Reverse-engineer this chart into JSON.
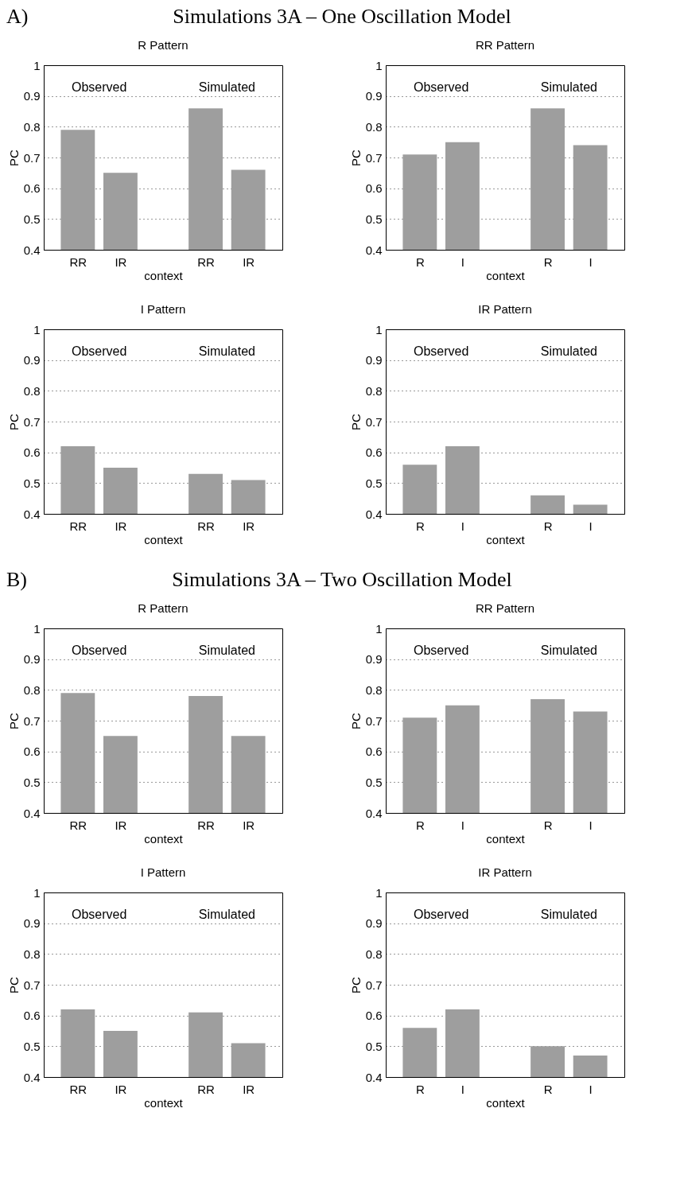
{
  "chart_data": [
    {
      "type": "bar",
      "title": "R  Pattern",
      "xlabel": "context",
      "ylabel": "PC",
      "categories": [
        "RR",
        "IR",
        null,
        "RR",
        "IR"
      ],
      "values": [
        0.79,
        0.65,
        null,
        0.86,
        0.66
      ],
      "color": "#9e9e9e",
      "ylim": [
        0.4,
        1
      ],
      "yticks": [
        0.4,
        0.5,
        0.6,
        0.7,
        0.8,
        0.9,
        1
      ],
      "grid": "y",
      "annotations": [
        "A)",
        "Simulations 3A – One Oscillation Model",
        "Observed",
        "Simulated"
      ]
    },
    {
      "type": "bar",
      "title": "RR Pattern",
      "xlabel": "context",
      "ylabel": "PC",
      "categories": [
        "R",
        "I",
        null,
        "R",
        "I"
      ],
      "values": [
        0.71,
        0.75,
        null,
        0.86,
        0.74
      ],
      "color": "#9e9e9e",
      "ylim": [
        0.4,
        1
      ],
      "yticks": [
        0.4,
        0.5,
        0.6,
        0.7,
        0.8,
        0.9,
        1
      ],
      "grid": "y",
      "annotations": [
        "Observed",
        "Simulated"
      ]
    },
    {
      "type": "bar",
      "title": "I  Pattern",
      "xlabel": "context",
      "ylabel": "PC",
      "categories": [
        "RR",
        "IR",
        null,
        "RR",
        "IR"
      ],
      "values": [
        0.62,
        0.55,
        null,
        0.53,
        0.51
      ],
      "color": "#9e9e9e",
      "ylim": [
        0.4,
        1
      ],
      "yticks": [
        0.4,
        0.5,
        0.6,
        0.7,
        0.8,
        0.9,
        1
      ],
      "grid": "y",
      "annotations": [
        "Observed",
        "Simulated"
      ]
    },
    {
      "type": "bar",
      "title": "IR Pattern",
      "xlabel": "context",
      "ylabel": "PC",
      "categories": [
        "R",
        "I",
        null,
        "R",
        "I"
      ],
      "values": [
        0.56,
        0.62,
        null,
        0.46,
        0.43
      ],
      "color": "#9e9e9e",
      "ylim": [
        0.4,
        1
      ],
      "yticks": [
        0.4,
        0.5,
        0.6,
        0.7,
        0.8,
        0.9,
        1
      ],
      "grid": "y",
      "annotations": [
        "Observed",
        "Simulated"
      ]
    },
    {
      "type": "bar",
      "title": "R  Pattern",
      "xlabel": "context",
      "ylabel": "PC",
      "categories": [
        "RR",
        "IR",
        null,
        "RR",
        "IR"
      ],
      "values": [
        0.79,
        0.65,
        null,
        0.78,
        0.65
      ],
      "color": "#9e9e9e",
      "ylim": [
        0.4,
        1
      ],
      "yticks": [
        0.4,
        0.5,
        0.6,
        0.7,
        0.8,
        0.9,
        1
      ],
      "grid": "y",
      "annotations": [
        "B)",
        "Simulations 3A – Two Oscillation Model",
        "Observed",
        "Simulated"
      ]
    },
    {
      "type": "bar",
      "title": "RR Pattern",
      "xlabel": "context",
      "ylabel": "PC",
      "categories": [
        "R",
        "I",
        null,
        "R",
        "I"
      ],
      "values": [
        0.71,
        0.75,
        null,
        0.77,
        0.73
      ],
      "color": "#9e9e9e",
      "ylim": [
        0.4,
        1
      ],
      "yticks": [
        0.4,
        0.5,
        0.6,
        0.7,
        0.8,
        0.9,
        1
      ],
      "grid": "y",
      "annotations": [
        "Observed",
        "Simulated"
      ]
    },
    {
      "type": "bar",
      "title": "I  Pattern",
      "xlabel": "context",
      "ylabel": "PC",
      "categories": [
        "RR",
        "IR",
        null,
        "RR",
        "IR"
      ],
      "values": [
        0.62,
        0.55,
        null,
        0.61,
        0.51
      ],
      "color": "#9e9e9e",
      "ylim": [
        0.4,
        1
      ],
      "yticks": [
        0.4,
        0.5,
        0.6,
        0.7,
        0.8,
        0.9,
        1
      ],
      "grid": "y",
      "annotations": [
        "Observed",
        "Simulated"
      ]
    },
    {
      "type": "bar",
      "title": "IR Pattern",
      "xlabel": "context",
      "ylabel": "PC",
      "categories": [
        "R",
        "I",
        null,
        "R",
        "I"
      ],
      "values": [
        0.56,
        0.62,
        null,
        0.5,
        0.47
      ],
      "color": "#9e9e9e",
      "ylim": [
        0.4,
        1
      ],
      "yticks": [
        0.4,
        0.5,
        0.6,
        0.7,
        0.8,
        0.9,
        1
      ],
      "grid": "y",
      "annotations": [
        "Observed",
        "Simulated"
      ]
    }
  ]
}
